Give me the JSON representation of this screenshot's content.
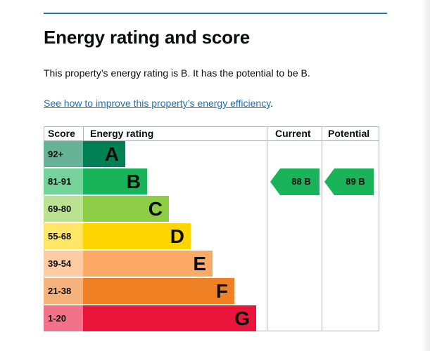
{
  "title": "Energy rating and score",
  "summary": "This property’s energy rating is B. It has the potential to be B.",
  "improve_link": "See how to improve this property’s energy efficiency",
  "improve_link_suffix": ".",
  "table": {
    "headers": {
      "score": "Score",
      "rating": "Energy rating",
      "current": "Current",
      "potential": "Potential"
    },
    "bands": [
      {
        "range": "92+",
        "letter": "A",
        "color": "#008054",
        "cell_color": "#66b398"
      },
      {
        "range": "81-91",
        "letter": "B",
        "color": "#19b459",
        "cell_color": "#75d29b"
      },
      {
        "range": "69-80",
        "letter": "C",
        "color": "#8dce46",
        "cell_color": "#bbe290"
      },
      {
        "range": "55-68",
        "letter": "D",
        "color": "#ffd500",
        "cell_color": "#ffe666"
      },
      {
        "range": "39-54",
        "letter": "E",
        "color": "#fcaa65",
        "cell_color": "#fdcca3"
      },
      {
        "range": "21-38",
        "letter": "F",
        "color": "#ef8023",
        "cell_color": "#f5b37b"
      },
      {
        "range": "1-20",
        "letter": "G",
        "color": "#e9153b",
        "cell_color": "#f27389"
      }
    ],
    "current": {
      "score": "88",
      "letter": "B",
      "label": "88  B",
      "color": "#19b459"
    },
    "potential": {
      "score": "89",
      "letter": "B",
      "label": "89  B",
      "color": "#19b459"
    }
  }
}
